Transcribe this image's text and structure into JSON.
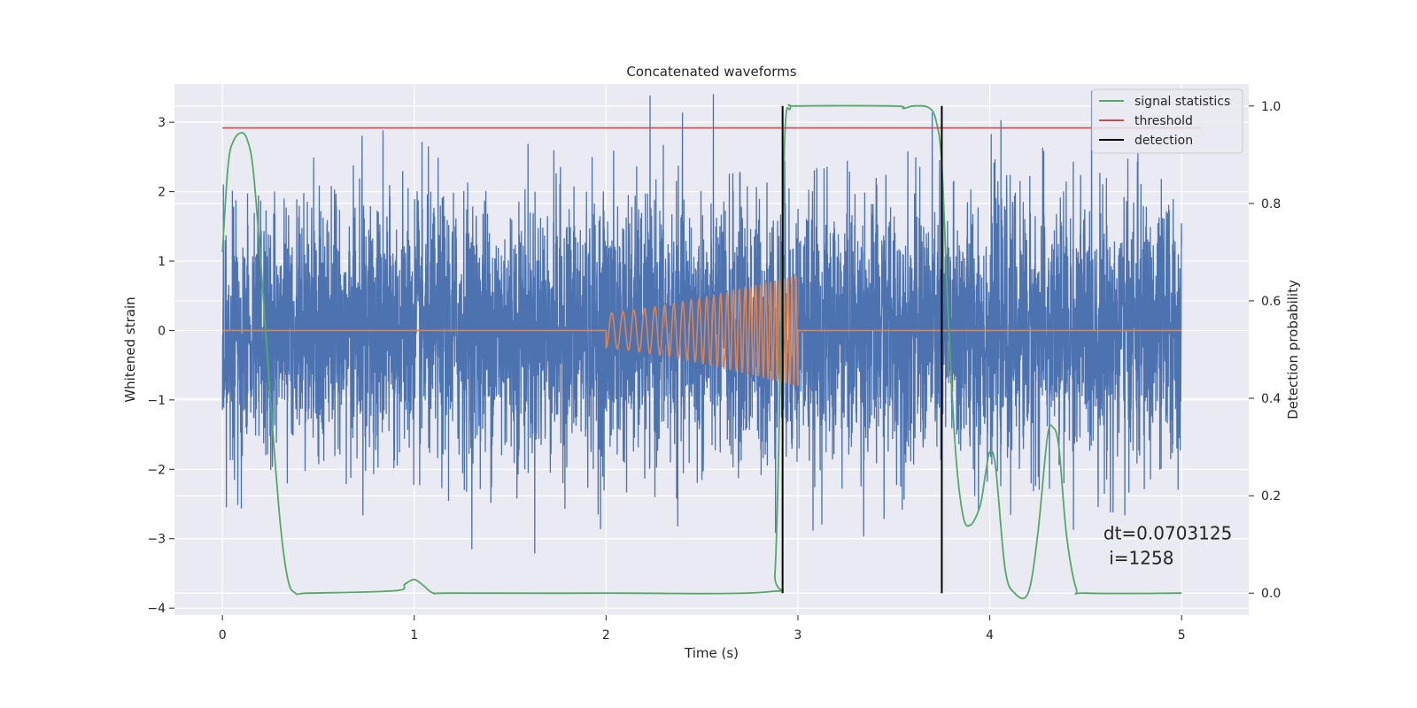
{
  "chart_data": {
    "type": "line",
    "title": "Concatenated waveforms",
    "xlabel": "Time (s)",
    "ylabel": "Whitened strain",
    "y2label": "Detection probability",
    "xlim": [
      -0.25,
      5.35
    ],
    "ylim": [
      -4.1,
      3.55
    ],
    "y2lim": [
      -0.045,
      1.045
    ],
    "xticks": [
      0,
      1,
      2,
      3,
      4,
      5
    ],
    "xtick_labels": [
      "0",
      "1",
      "2",
      "3",
      "4",
      "5"
    ],
    "yticks": [
      -4,
      -3,
      -2,
      -1,
      0,
      1,
      2,
      3
    ],
    "ytick_labels": [
      "−4",
      "−3",
      "−2",
      "−1",
      "0",
      "1",
      "2",
      "3"
    ],
    "y2ticks": [
      0.0,
      0.2,
      0.4,
      0.6,
      0.8,
      1.0
    ],
    "y2tick_labels": [
      "0.0",
      "0.2",
      "0.4",
      "0.6",
      "0.8",
      "1.0"
    ],
    "grid": true,
    "legend_position": "top-right",
    "colors": {
      "noise": "#4c72b0",
      "waveform": "#dd8452",
      "signal_statistics": "#55a868",
      "threshold": "#c44e52",
      "detection": "#000000",
      "background": "#eaeaf2",
      "grid": "#ffffff"
    },
    "series": [
      {
        "name": "",
        "axis": "left",
        "kind": "noise",
        "x_range": [
          0,
          5
        ],
        "amplitude_envelope": 3.45
      },
      {
        "name": "",
        "axis": "left",
        "kind": "chirp",
        "x_range": [
          2.0,
          3.0
        ],
        "amplitude_start": 0.25,
        "amplitude_end": 0.8,
        "freq_start_hz": 17,
        "freq_end_hz": 50
      },
      {
        "name": "signal statistics",
        "axis": "right",
        "kind": "line",
        "x": [
          0,
          0.03,
          0.06,
          0.1,
          0.13,
          0.16,
          0.2,
          0.25,
          0.3,
          0.34,
          0.38,
          0.45,
          0.9,
          0.95,
          1.0,
          1.05,
          1.1,
          1.2,
          2.0,
          2.85,
          2.88,
          2.9,
          2.93,
          2.96,
          3.0,
          3.5,
          3.55,
          3.6,
          3.68,
          3.72,
          3.75,
          3.78,
          3.82,
          3.86,
          3.9,
          3.95,
          3.98,
          4.0,
          4.03,
          4.08,
          4.13,
          4.2,
          4.25,
          4.3,
          4.33,
          4.36,
          4.4,
          4.45,
          4.5,
          5.0
        ],
        "y": [
          0.7,
          0.88,
          0.93,
          0.945,
          0.93,
          0.87,
          0.68,
          0.4,
          0.15,
          0.03,
          0.0,
          0.0,
          0.005,
          0.018,
          0.028,
          0.015,
          0.0,
          0.0,
          0.0,
          0.003,
          0.04,
          0.3,
          0.92,
          0.995,
          1.0,
          1.0,
          0.995,
          1.0,
          0.997,
          0.97,
          0.88,
          0.6,
          0.3,
          0.16,
          0.14,
          0.18,
          0.25,
          0.29,
          0.26,
          0.05,
          0.0,
          0.0,
          0.12,
          0.32,
          0.34,
          0.3,
          0.12,
          0.01,
          0.0,
          0.0
        ]
      },
      {
        "name": "threshold",
        "axis": "right",
        "kind": "hline",
        "x_range": [
          0,
          5.1
        ],
        "y": 0.955
      },
      {
        "name": "detection",
        "axis": "right",
        "kind": "vlines",
        "x": [
          2.92,
          3.75
        ],
        "y_range": [
          0.0,
          1.0
        ]
      }
    ],
    "legend": [
      "signal statistics",
      "threshold",
      "detection"
    ],
    "annotation": {
      "line1": "dt=0.0703125",
      "line2": " i=1258",
      "x": 4.5,
      "y2": 0.11
    }
  }
}
